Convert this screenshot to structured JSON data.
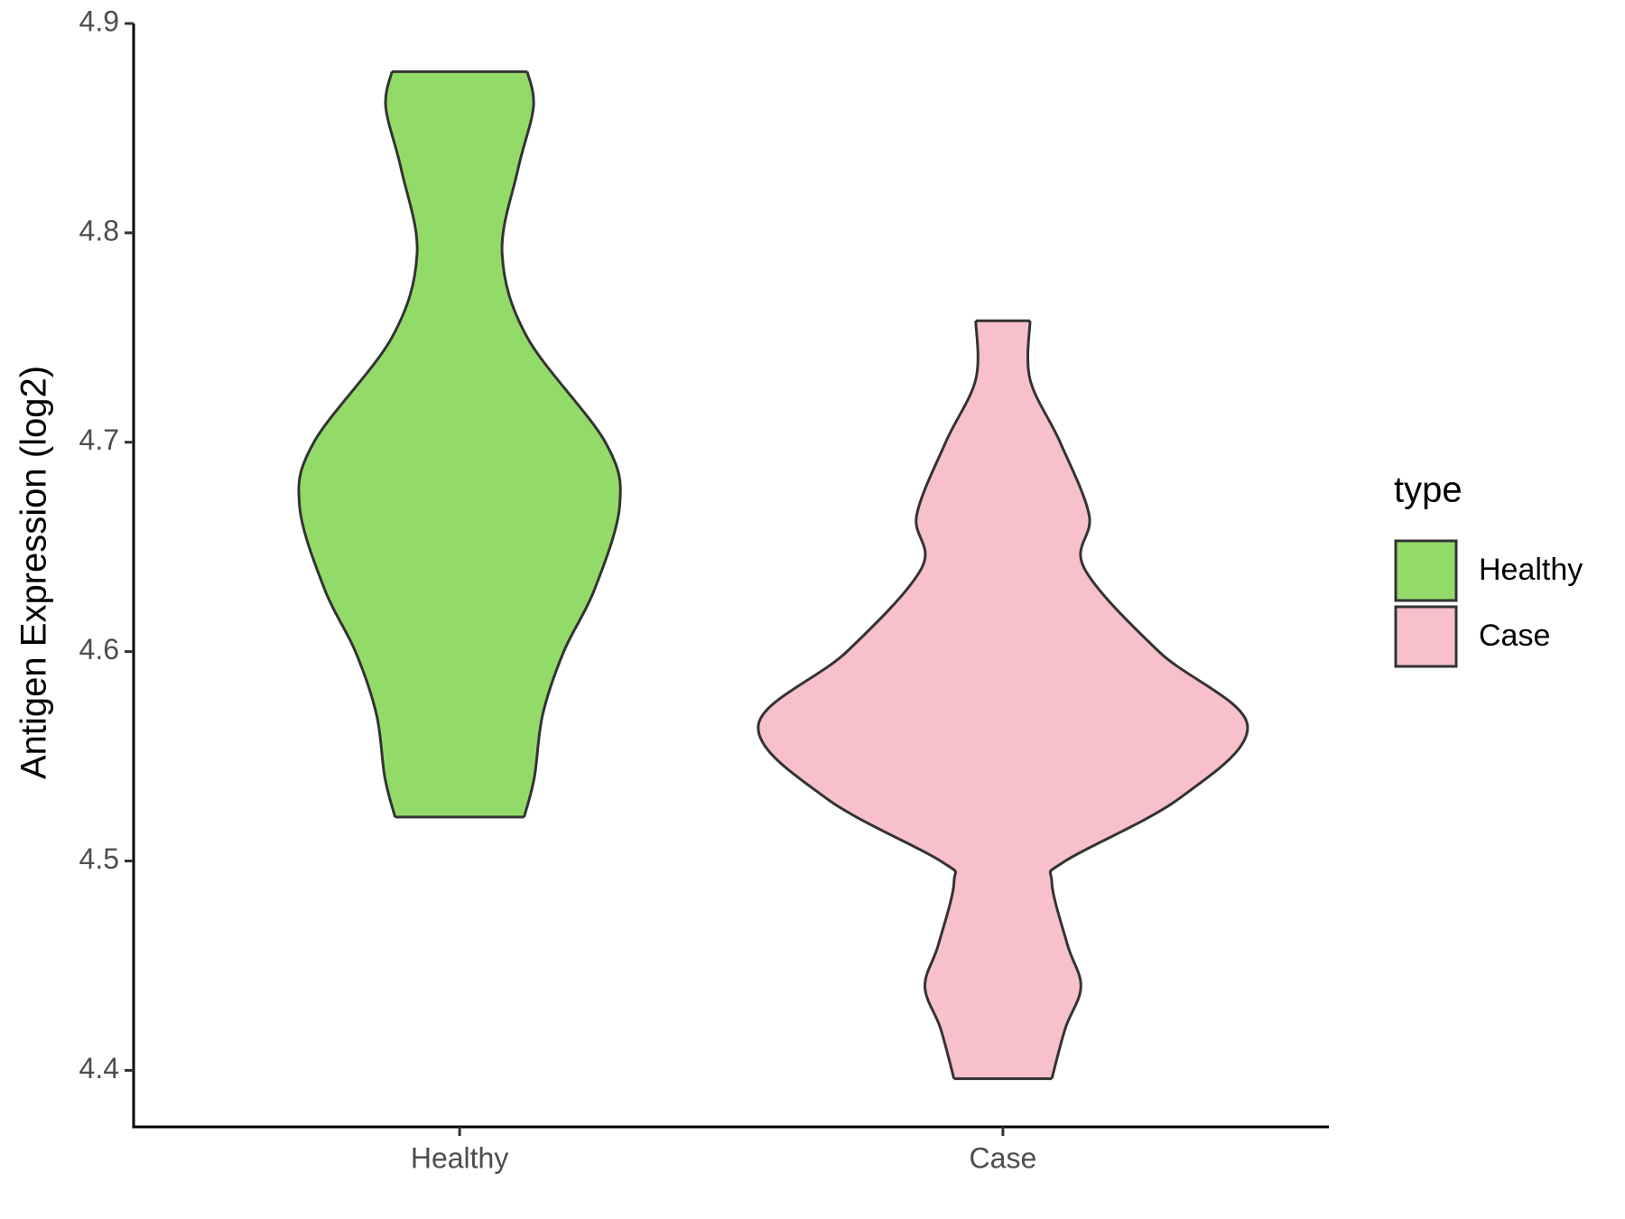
{
  "chart_data": {
    "type": "violin",
    "y_label": "Antigen Expression (log2)",
    "categories": [
      "Healthy",
      "Case"
    ],
    "ylim": [
      4.373,
      4.9
    ],
    "yticks": [
      4.4,
      4.5,
      4.6,
      4.7,
      4.8,
      4.9
    ],
    "legend_title": "type",
    "legend": "right",
    "series": [
      {
        "name": "Healthy",
        "color": "#93db69",
        "y": [
          4.877,
          4.86,
          4.83,
          4.79,
          4.75,
          4.7,
          4.67,
          4.63,
          4.6,
          4.57,
          4.54,
          4.521
        ],
        "width": [
          0.277,
          0.302,
          0.238,
          0.174,
          0.277,
          0.596,
          0.655,
          0.553,
          0.426,
          0.34,
          0.306,
          0.264
        ]
      },
      {
        "name": "Case",
        "color": "#f7c0cb",
        "y": [
          4.758,
          4.73,
          4.7,
          4.665,
          4.64,
          4.6,
          4.565,
          4.53,
          4.5,
          4.49,
          4.46,
          4.44,
          4.42,
          4.396
        ],
        "width": [
          0.111,
          0.111,
          0.234,
          0.353,
          0.332,
          0.638,
          1,
          0.723,
          0.255,
          0.2,
          0.264,
          0.319,
          0.255,
          0.2
        ]
      }
    ]
  }
}
